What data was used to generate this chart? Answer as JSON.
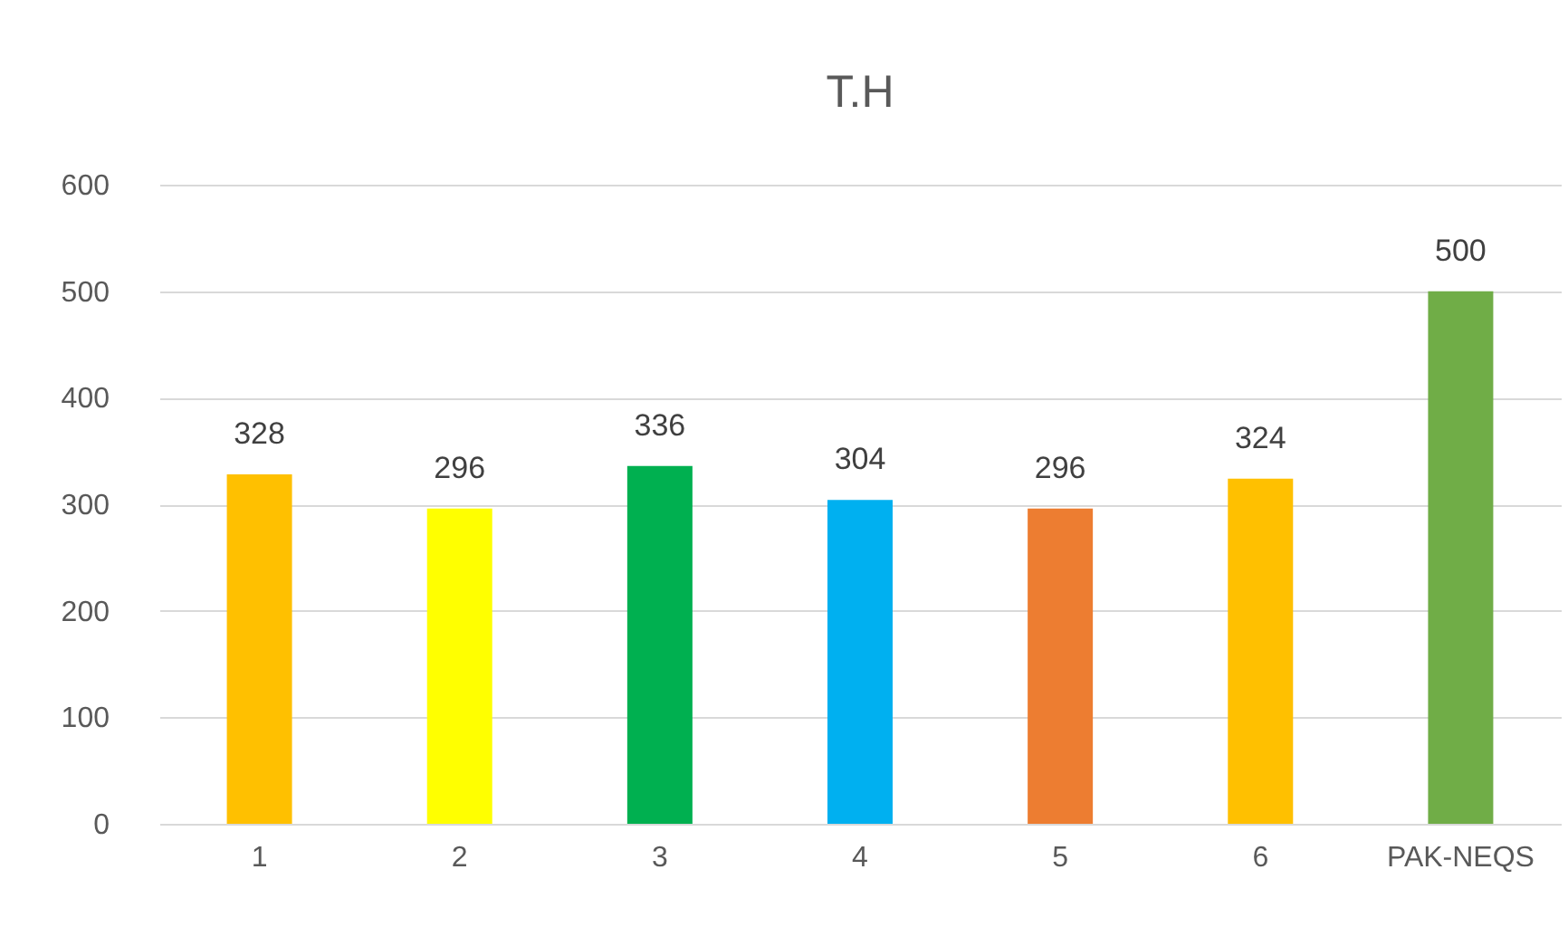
{
  "chart_data": {
    "type": "bar",
    "title": "T.H",
    "categories": [
      "1",
      "2",
      "3",
      "4",
      "5",
      "6",
      "PAK-NEQS"
    ],
    "values": [
      328,
      296,
      336,
      304,
      296,
      324,
      500
    ],
    "colors": [
      "#ffc000",
      "#ffff00",
      "#00b050",
      "#00b0f0",
      "#ed7d31",
      "#ffc000",
      "#70ad47"
    ],
    "ylim": [
      0,
      600
    ],
    "yticks": [
      0,
      100,
      200,
      300,
      400,
      500,
      600
    ],
    "grid": "y",
    "data_labels": true
  }
}
